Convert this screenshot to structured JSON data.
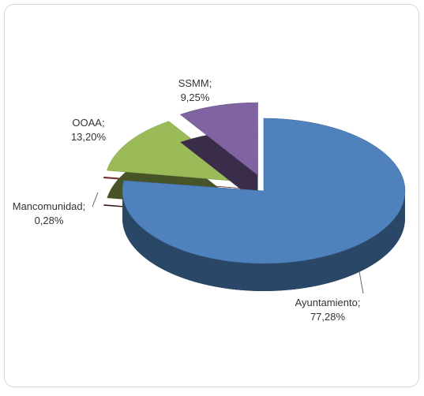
{
  "chart_data": {
    "type": "pie",
    "categories": [
      "Ayuntamiento;",
      "Mancomunidad;",
      "OOAA;",
      "SSMM;"
    ],
    "values": [
      77.28,
      0.28,
      13.2,
      9.25
    ],
    "value_labels": [
      "77,28%",
      "0,28%",
      "13,20%",
      "9,25%"
    ],
    "colors": [
      "#4f81bd",
      "#7f2f2c",
      "#9bbb59",
      "#8064a2"
    ]
  }
}
